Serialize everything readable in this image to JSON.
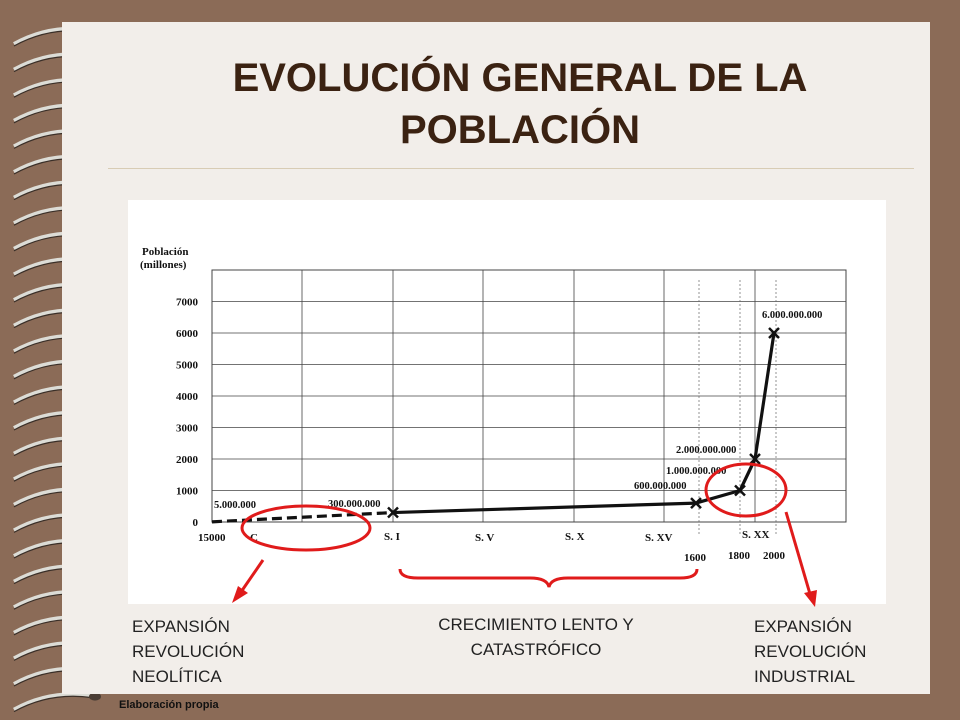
{
  "title": "EVOLUCIÓN GENERAL DE LA POBLACIÓN",
  "source": "Elaboración propia",
  "chart_data": {
    "type": "line",
    "ylabel": "Población (millones)",
    "yticks": [
      0,
      1000,
      2000,
      3000,
      4000,
      5000,
      6000,
      7000
    ],
    "ylim": [
      0,
      8000
    ],
    "x_tick_labels": [
      "15000",
      "C",
      "S. I",
      "S. V",
      "S. X",
      "S. XV",
      "1600",
      "1800",
      "S. XX",
      "2000"
    ],
    "grid": true,
    "series": [
      {
        "style": "dashed",
        "points": [
          {
            "x": "15000 a. C.",
            "y": 5
          },
          {
            "x": "S. I",
            "y": 300
          }
        ]
      },
      {
        "style": "solid",
        "points": [
          {
            "x": "S. I",
            "y": 300
          },
          {
            "x": "1600",
            "y": 600
          },
          {
            "x": "1800",
            "y": 1000
          },
          {
            "x": "S. XX",
            "y": 2000
          },
          {
            "x": "2000",
            "y": 6000
          }
        ]
      }
    ],
    "point_labels": [
      "5.000.000",
      "300.000.000",
      "600.000.000",
      "1.000.000.000",
      "2.000.000.000",
      "6.000.000.000"
    ]
  },
  "annotations": {
    "left": [
      "EXPANSIÓN",
      "REVOLUCIÓN",
      "NEOLÍTICA"
    ],
    "middle": [
      "CRECIMIENTO LENTO Y",
      "CATASTRÓFICO"
    ],
    "right": [
      "EXPANSIÓN",
      "REVOLUCIÓN",
      "INDUSTRIAL"
    ]
  },
  "colors": {
    "background": "#8b6b57",
    "slide": "#f2eeea",
    "title": "#3b2212",
    "highlight": "#e01b1b"
  }
}
